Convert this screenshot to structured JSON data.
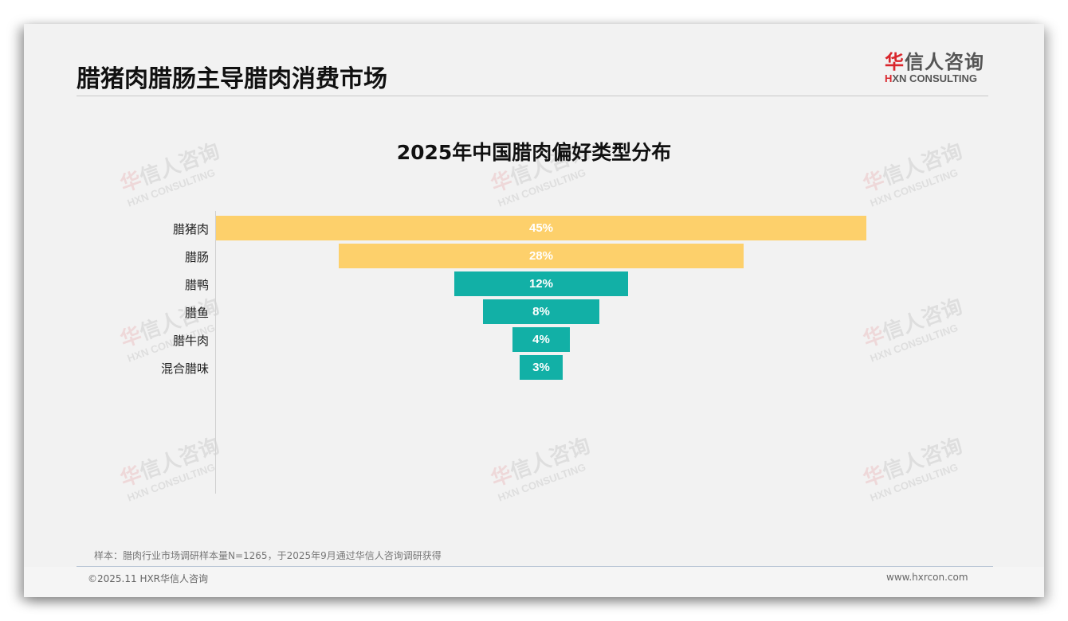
{
  "header": {
    "title": "腊猪肉腊肠主导腊肉消费市场",
    "logo": {
      "cn_red": "华",
      "cn_rest": "信人咨询",
      "en_red": "H",
      "en_rest": "XN CONSULTING"
    }
  },
  "watermark": {
    "cn_red": "华",
    "cn_rest": "信人咨询",
    "en": "HXN CONSULTING"
  },
  "chart_data": {
    "type": "bar",
    "subtype": "funnel",
    "title": "2025年中国腊肉偏好类型分布",
    "categories": [
      "腊猪肉",
      "腊肠",
      "腊鸭",
      "腊鱼",
      "腊牛肉",
      "混合腊味"
    ],
    "values": [
      45,
      28,
      12,
      8,
      4,
      3
    ],
    "value_labels": [
      "45%",
      "28%",
      "12%",
      "8%",
      "4%",
      "3%"
    ],
    "unit": "%",
    "colors": [
      "#fdd06b",
      "#fdd06b",
      "#12b0a6",
      "#12b0a6",
      "#12b0a6",
      "#12b0a6"
    ],
    "xlabel": "",
    "ylabel": "",
    "grid": false,
    "legend": null
  },
  "footer": {
    "note": "样本：腊肉行业市场调研样本量N=1265，于2025年9月通过华信人咨询调研获得",
    "copyright": "©2025.11 HXR华信人咨询",
    "website": "www.hxrcon.com"
  }
}
